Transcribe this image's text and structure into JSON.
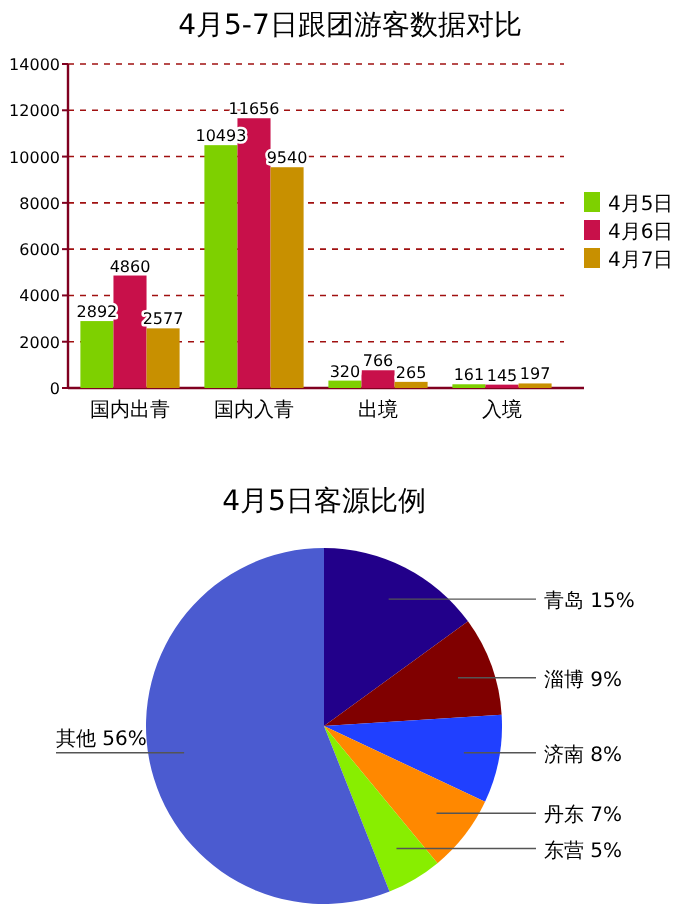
{
  "chart_data": [
    {
      "type": "bar",
      "title": "4月5-7日跟团游客数据对比",
      "categories": [
        "国内出青",
        "国内入青",
        "出境",
        "入境"
      ],
      "series": [
        {
          "name": "4月5日",
          "color": "#7ed000",
          "values": [
            2892,
            10493,
            320,
            161
          ]
        },
        {
          "name": "4月6日",
          "color": "#c8104a",
          "values": [
            4860,
            11656,
            766,
            145
          ]
        },
        {
          "name": "4月7日",
          "color": "#c89000",
          "values": [
            2577,
            9540,
            265,
            197
          ]
        }
      ],
      "ylim": [
        0,
        14000
      ],
      "yticks": [
        0,
        2000,
        4000,
        6000,
        8000,
        10000,
        12000,
        14000
      ],
      "grid": "y",
      "legend": "right",
      "data_labels": true
    },
    {
      "type": "pie",
      "title": "4月5日客源比例",
      "categories": [
        "青岛",
        "淄博",
        "济南",
        "丹东",
        "东营",
        "其他"
      ],
      "values": [
        15,
        9,
        8,
        7,
        5,
        56
      ],
      "value_labels": [
        "15%",
        "9%",
        "8%",
        "7%",
        "5%",
        "56%"
      ],
      "colors": [
        "#22008a",
        "#800000",
        "#2040ff",
        "#ff8800",
        "#88ee00",
        "#4b5bd0"
      ]
    }
  ]
}
